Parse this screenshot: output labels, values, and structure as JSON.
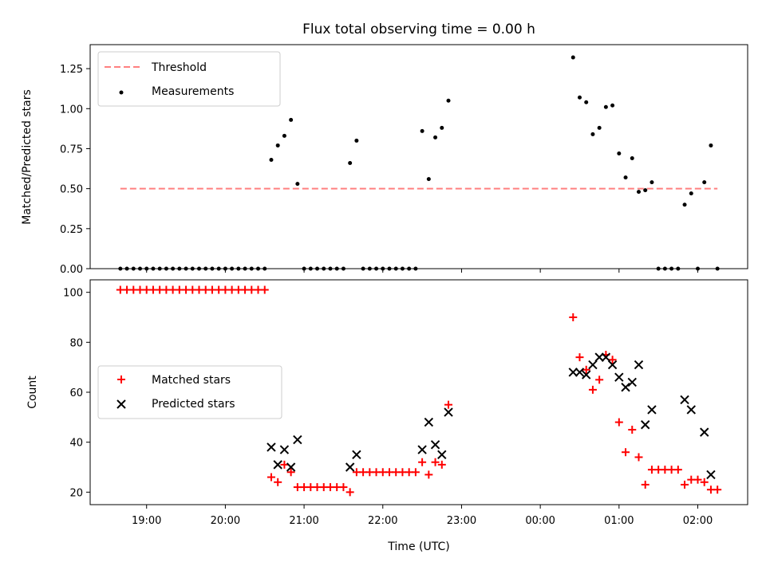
{
  "chart_data": [
    {
      "type": "scatter",
      "title": "Flux total observing time = 0.00 h",
      "ylabel": "Matched/Predicted stars",
      "ylim": [
        0,
        1.4
      ],
      "yticks": [
        0,
        0.25,
        0.5,
        0.75,
        1.0,
        1.25
      ],
      "ytick_labels": [
        "0.00",
        "0.25",
        "0.50",
        "0.75",
        "1.00",
        "1.25"
      ],
      "legend_position": "upper-left",
      "threshold": {
        "name": "Threshold",
        "value": 0.5,
        "x_range": [
          "18:40",
          "02:15"
        ],
        "color": "#ff8080"
      },
      "series": [
        {
          "name": "Measurements",
          "color": "#000000",
          "marker": "dot",
          "points": [
            [
              "18:40",
              0
            ],
            [
              "18:45",
              0
            ],
            [
              "18:50",
              0
            ],
            [
              "18:55",
              0
            ],
            [
              "19:00",
              0
            ],
            [
              "19:05",
              0
            ],
            [
              "19:10",
              0
            ],
            [
              "19:15",
              0
            ],
            [
              "19:20",
              0
            ],
            [
              "19:25",
              0
            ],
            [
              "19:30",
              0
            ],
            [
              "19:35",
              0
            ],
            [
              "19:40",
              0
            ],
            [
              "19:45",
              0
            ],
            [
              "19:50",
              0
            ],
            [
              "19:55",
              0
            ],
            [
              "20:00",
              0
            ],
            [
              "20:05",
              0
            ],
            [
              "20:10",
              0
            ],
            [
              "20:15",
              0
            ],
            [
              "20:20",
              0
            ],
            [
              "20:25",
              0
            ],
            [
              "20:30",
              0
            ],
            [
              "20:35",
              0.68
            ],
            [
              "20:40",
              0.77
            ],
            [
              "20:45",
              0.83
            ],
            [
              "20:50",
              0.93
            ],
            [
              "20:55",
              0.53
            ],
            [
              "21:00",
              0
            ],
            [
              "21:05",
              0
            ],
            [
              "21:10",
              0
            ],
            [
              "21:15",
              0
            ],
            [
              "21:20",
              0
            ],
            [
              "21:25",
              0
            ],
            [
              "21:30",
              0
            ],
            [
              "21:35",
              0.66
            ],
            [
              "21:40",
              0.8
            ],
            [
              "21:45",
              0
            ],
            [
              "21:50",
              0
            ],
            [
              "21:55",
              0
            ],
            [
              "22:00",
              0
            ],
            [
              "22:05",
              0
            ],
            [
              "22:10",
              0
            ],
            [
              "22:15",
              0
            ],
            [
              "22:20",
              0
            ],
            [
              "22:25",
              0
            ],
            [
              "22:30",
              0.86
            ],
            [
              "22:35",
              0.56
            ],
            [
              "22:40",
              0.82
            ],
            [
              "22:45",
              0.88
            ],
            [
              "22:50",
              1.05
            ],
            [
              "00:25",
              1.32
            ],
            [
              "00:30",
              1.07
            ],
            [
              "00:35",
              1.04
            ],
            [
              "00:40",
              0.84
            ],
            [
              "00:45",
              0.88
            ],
            [
              "00:50",
              1.01
            ],
            [
              "00:55",
              1.02
            ],
            [
              "01:00",
              0.72
            ],
            [
              "01:05",
              0.57
            ],
            [
              "01:10",
              0.69
            ],
            [
              "01:15",
              0.48
            ],
            [
              "01:20",
              0.49
            ],
            [
              "01:25",
              0.54
            ],
            [
              "01:30",
              0
            ],
            [
              "01:35",
              0
            ],
            [
              "01:40",
              0
            ],
            [
              "01:45",
              0
            ],
            [
              "01:50",
              0.4
            ],
            [
              "01:55",
              0.47
            ],
            [
              "02:00",
              0
            ],
            [
              "02:05",
              0.54
            ],
            [
              "02:10",
              0.77
            ],
            [
              "02:15",
              0
            ]
          ]
        }
      ]
    },
    {
      "type": "scatter",
      "xlabel": "Time (UTC)",
      "ylabel": "Count",
      "ylim": [
        15,
        105
      ],
      "yticks": [
        20,
        40,
        60,
        80,
        100
      ],
      "ytick_labels": [
        "20",
        "40",
        "60",
        "80",
        "100"
      ],
      "xticks": [
        "19:00",
        "20:00",
        "21:00",
        "22:00",
        "23:00",
        "00:00",
        "01:00",
        "02:00"
      ],
      "xlim": [
        "18:17",
        "02:38"
      ],
      "legend_position": "center-left",
      "series": [
        {
          "name": "Matched stars",
          "color": "#ff0000",
          "marker": "plus",
          "points": [
            [
              "18:40",
              101
            ],
            [
              "18:45",
              101
            ],
            [
              "18:50",
              101
            ],
            [
              "18:55",
              101
            ],
            [
              "19:00",
              101
            ],
            [
              "19:05",
              101
            ],
            [
              "19:10",
              101
            ],
            [
              "19:15",
              101
            ],
            [
              "19:20",
              101
            ],
            [
              "19:25",
              101
            ],
            [
              "19:30",
              101
            ],
            [
              "19:35",
              101
            ],
            [
              "19:40",
              101
            ],
            [
              "19:45",
              101
            ],
            [
              "19:50",
              101
            ],
            [
              "19:55",
              101
            ],
            [
              "20:00",
              101
            ],
            [
              "20:05",
              101
            ],
            [
              "20:10",
              101
            ],
            [
              "20:15",
              101
            ],
            [
              "20:20",
              101
            ],
            [
              "20:25",
              101
            ],
            [
              "20:30",
              101
            ],
            [
              "20:35",
              26
            ],
            [
              "20:40",
              24
            ],
            [
              "20:45",
              31
            ],
            [
              "20:50",
              28
            ],
            [
              "20:55",
              22
            ],
            [
              "21:00",
              22
            ],
            [
              "21:05",
              22
            ],
            [
              "21:10",
              22
            ],
            [
              "21:15",
              22
            ],
            [
              "21:20",
              22
            ],
            [
              "21:25",
              22
            ],
            [
              "21:30",
              22
            ],
            [
              "21:35",
              20
            ],
            [
              "21:40",
              28
            ],
            [
              "21:45",
              28
            ],
            [
              "21:50",
              28
            ],
            [
              "21:55",
              28
            ],
            [
              "22:00",
              28
            ],
            [
              "22:05",
              28
            ],
            [
              "22:10",
              28
            ],
            [
              "22:15",
              28
            ],
            [
              "22:20",
              28
            ],
            [
              "22:25",
              28
            ],
            [
              "22:30",
              32
            ],
            [
              "22:35",
              27
            ],
            [
              "22:40",
              32
            ],
            [
              "22:45",
              31
            ],
            [
              "22:50",
              55
            ],
            [
              "00:25",
              90
            ],
            [
              "00:30",
              74
            ],
            [
              "00:35",
              69
            ],
            [
              "00:40",
              61
            ],
            [
              "00:45",
              65
            ],
            [
              "00:50",
              75
            ],
            [
              "00:55",
              73
            ],
            [
              "01:00",
              48
            ],
            [
              "01:05",
              36
            ],
            [
              "01:10",
              45
            ],
            [
              "01:15",
              34
            ],
            [
              "01:20",
              23
            ],
            [
              "01:25",
              29
            ],
            [
              "01:30",
              29
            ],
            [
              "01:35",
              29
            ],
            [
              "01:40",
              29
            ],
            [
              "01:45",
              29
            ],
            [
              "01:50",
              23
            ],
            [
              "01:55",
              25
            ],
            [
              "02:00",
              25
            ],
            [
              "02:05",
              24
            ],
            [
              "02:10",
              21
            ],
            [
              "02:15",
              21
            ]
          ]
        },
        {
          "name": "Predicted stars",
          "color": "#000000",
          "marker": "x",
          "points": [
            [
              "20:35",
              38
            ],
            [
              "20:40",
              31
            ],
            [
              "20:45",
              37
            ],
            [
              "20:50",
              30
            ],
            [
              "20:55",
              41
            ],
            [
              "21:35",
              30
            ],
            [
              "21:40",
              35
            ],
            [
              "22:30",
              37
            ],
            [
              "22:35",
              48
            ],
            [
              "22:40",
              39
            ],
            [
              "22:45",
              35
            ],
            [
              "22:50",
              52
            ],
            [
              "00:25",
              68
            ],
            [
              "00:30",
              68
            ],
            [
              "00:35",
              67
            ],
            [
              "00:40",
              71
            ],
            [
              "00:45",
              74
            ],
            [
              "00:50",
              74
            ],
            [
              "00:55",
              71
            ],
            [
              "01:00",
              66
            ],
            [
              "01:05",
              62
            ],
            [
              "01:10",
              64
            ],
            [
              "01:15",
              71
            ],
            [
              "01:20",
              47
            ],
            [
              "01:25",
              53
            ],
            [
              "01:50",
              57
            ],
            [
              "01:55",
              53
            ],
            [
              "02:05",
              44
            ],
            [
              "02:10",
              27
            ]
          ]
        }
      ]
    }
  ]
}
